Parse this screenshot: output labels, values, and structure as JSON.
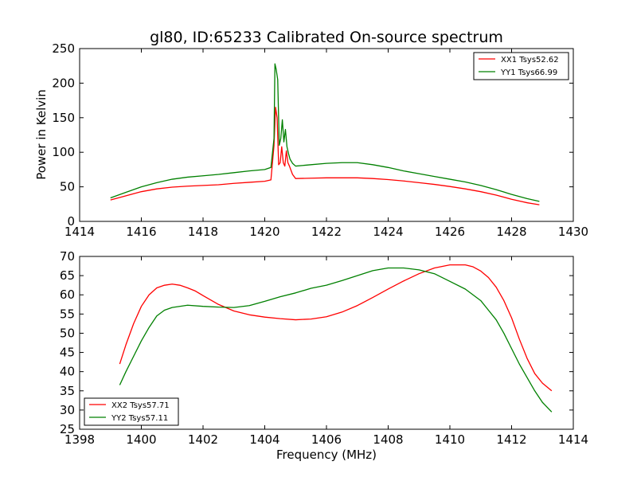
{
  "chart_data": [
    {
      "type": "line",
      "title": "gl80, ID:65233 Calibrated On-source spectrum",
      "xlabel": "",
      "ylabel": "Power in Kelvin",
      "xlim": [
        1414,
        1430
      ],
      "ylim": [
        0,
        250
      ],
      "x_ticks": [
        1414,
        1416,
        1418,
        1420,
        1422,
        1424,
        1426,
        1428,
        1430
      ],
      "y_ticks": [
        0,
        50,
        100,
        150,
        200,
        250
      ],
      "grid": false,
      "legend_position": "upper right",
      "series": [
        {
          "name": "XX1 Tsys52.62",
          "color": "#ff0000",
          "x": [
            1415.0,
            1415.5,
            1416.0,
            1416.5,
            1417.0,
            1417.5,
            1418.0,
            1418.5,
            1419.0,
            1419.5,
            1420.0,
            1420.2,
            1420.3,
            1420.35,
            1420.4,
            1420.45,
            1420.5,
            1420.55,
            1420.6,
            1420.65,
            1420.7,
            1420.75,
            1420.8,
            1420.9,
            1421.0,
            1421.5,
            1422.0,
            1422.5,
            1423.0,
            1423.5,
            1424.0,
            1424.5,
            1425.0,
            1425.5,
            1426.0,
            1426.5,
            1427.0,
            1427.5,
            1428.0,
            1428.5,
            1428.9
          ],
          "y": [
            31,
            37,
            43,
            47,
            49.5,
            51,
            52,
            53,
            55,
            56.5,
            58,
            60,
            110,
            165,
            150,
            82,
            85,
            108,
            85,
            80,
            102,
            85,
            80,
            68,
            62,
            62.5,
            63,
            63,
            63,
            62,
            60.5,
            58.5,
            56,
            53.5,
            50.5,
            47,
            43,
            38,
            32,
            27,
            24
          ]
        },
        {
          "name": "YY1 Tsys66.99",
          "color": "#008000",
          "x": [
            1415.0,
            1415.5,
            1416.0,
            1416.5,
            1417.0,
            1417.5,
            1418.0,
            1418.5,
            1419.0,
            1419.5,
            1420.0,
            1420.2,
            1420.3,
            1420.33,
            1420.37,
            1420.42,
            1420.47,
            1420.52,
            1420.57,
            1420.62,
            1420.67,
            1420.72,
            1420.77,
            1420.82,
            1420.9,
            1421.0,
            1421.5,
            1422.0,
            1422.5,
            1423.0,
            1423.5,
            1424.0,
            1424.5,
            1425.0,
            1425.5,
            1426.0,
            1426.5,
            1427.0,
            1427.5,
            1428.0,
            1428.5,
            1428.9
          ],
          "y": [
            34,
            42,
            50,
            56,
            61,
            64,
            66,
            68,
            70.5,
            73,
            75,
            78,
            120,
            228,
            220,
            205,
            110,
            120,
            147,
            115,
            133,
            108,
            98,
            90,
            84,
            80,
            82,
            84,
            85,
            85,
            82,
            78,
            73,
            69,
            65,
            61,
            57,
            52,
            46,
            39,
            33,
            29
          ]
        }
      ]
    },
    {
      "type": "line",
      "title": "",
      "xlabel": "Frequency (MHz)",
      "ylabel": "",
      "xlim": [
        1398,
        1414
      ],
      "ylim": [
        25,
        70
      ],
      "x_ticks": [
        1398,
        1400,
        1402,
        1404,
        1406,
        1408,
        1410,
        1412,
        1414
      ],
      "y_ticks": [
        25,
        30,
        35,
        40,
        45,
        50,
        55,
        60,
        65,
        70
      ],
      "grid": false,
      "legend_position": "lower left",
      "series": [
        {
          "name": "XX2 Tsys57.71",
          "color": "#ff0000",
          "x": [
            1399.3,
            1399.5,
            1399.75,
            1400.0,
            1400.25,
            1400.5,
            1400.75,
            1401.0,
            1401.25,
            1401.5,
            1401.75,
            1402.0,
            1402.5,
            1403.0,
            1403.5,
            1404.0,
            1404.5,
            1405.0,
            1405.5,
            1406.0,
            1406.5,
            1407.0,
            1407.5,
            1408.0,
            1408.5,
            1409.0,
            1409.5,
            1410.0,
            1410.5,
            1410.75,
            1411.0,
            1411.25,
            1411.5,
            1411.75,
            1412.0,
            1412.25,
            1412.5,
            1412.75,
            1413.0,
            1413.3
          ],
          "y": [
            42,
            47,
            52.5,
            57,
            60,
            61.8,
            62.5,
            62.8,
            62.5,
            61.8,
            61,
            59.8,
            57.5,
            55.8,
            54.8,
            54.2,
            53.8,
            53.5,
            53.7,
            54.3,
            55.5,
            57.2,
            59.3,
            61.5,
            63.6,
            65.5,
            67,
            67.8,
            67.8,
            67.3,
            66.2,
            64.5,
            62,
            58.5,
            54,
            48.5,
            43.5,
            39.5,
            37,
            35
          ]
        },
        {
          "name": "YY2 Tsys57.11",
          "color": "#008000",
          "x": [
            1399.3,
            1399.5,
            1399.75,
            1400.0,
            1400.25,
            1400.5,
            1400.75,
            1401.0,
            1401.5,
            1402.0,
            1402.5,
            1403.0,
            1403.5,
            1404.0,
            1404.5,
            1405.0,
            1405.5,
            1406.0,
            1406.5,
            1407.0,
            1407.5,
            1408.0,
            1408.5,
            1409.0,
            1409.5,
            1410.0,
            1410.5,
            1411.0,
            1411.25,
            1411.5,
            1411.75,
            1412.0,
            1412.25,
            1412.5,
            1412.75,
            1413.0,
            1413.3
          ],
          "y": [
            36.5,
            40,
            44,
            48,
            51.5,
            54.5,
            56,
            56.7,
            57.3,
            57,
            56.8,
            56.7,
            57.2,
            58.3,
            59.5,
            60.5,
            61.7,
            62.5,
            63.7,
            65,
            66.3,
            67,
            67,
            66.5,
            65.5,
            63.5,
            61.5,
            58.5,
            56,
            53.5,
            50,
            46,
            42,
            38.5,
            35,
            32,
            29.5
          ]
        }
      ]
    }
  ]
}
